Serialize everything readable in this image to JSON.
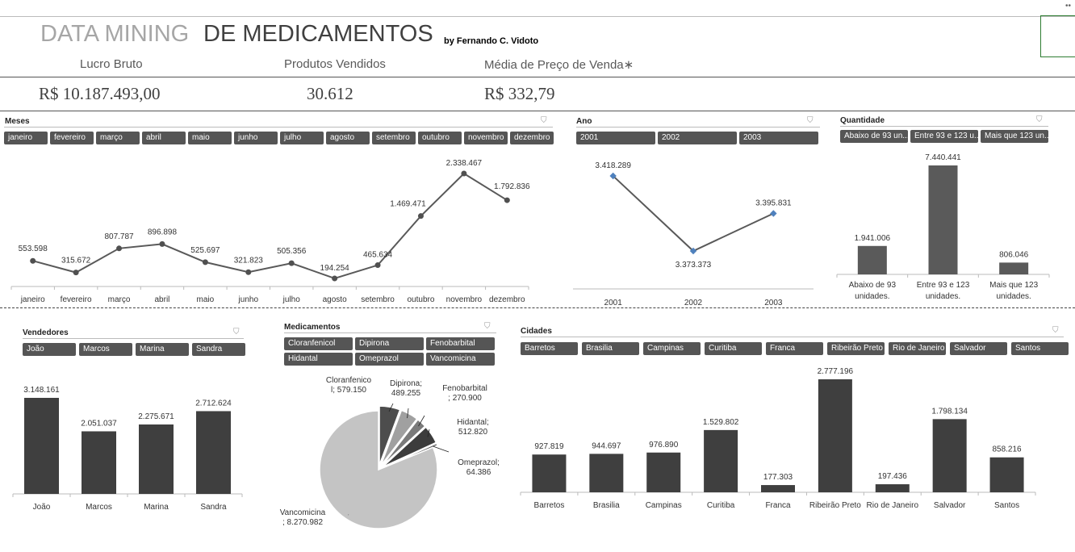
{
  "header": {
    "title_light": "DATA MINING",
    "title_dark": "DE MEDICAMENTOS",
    "byline": "by Fernando C. Vidoto"
  },
  "kpis": [
    {
      "label": "Lucro Bruto",
      "value": "R$ 10.187.493,00"
    },
    {
      "label": "Produtos Vendidos",
      "value": "30.612"
    },
    {
      "label": "Média de Preço de Venda∗",
      "value": "R$ 332,79"
    }
  ],
  "panels": {
    "meses": {
      "title": "Meses",
      "buttons": [
        "janeiro",
        "fevereiro",
        "março",
        "abril",
        "maio",
        "junho",
        "julho",
        "agosto",
        "setembro",
        "outubro",
        "novembro",
        "dezembro"
      ]
    },
    "ano": {
      "title": "Ano",
      "buttons": [
        "2001",
        "2002",
        "2003"
      ]
    },
    "quantidade": {
      "title": "Quantidade",
      "buttons": [
        "Abaixo de 93 un...",
        "Entre 93 e 123 u...",
        "Mais que 123 un..."
      ]
    },
    "vendedores": {
      "title": "Vendedores",
      "buttons": [
        "João",
        "Marcos",
        "Marina",
        "Sandra"
      ]
    },
    "medicamentos": {
      "title": "Medicamentos",
      "buttons": [
        "Cloranfenicol",
        "Dipirona",
        "Fenobarbital",
        "Hidantal",
        "Omeprazol",
        "Vancomicina"
      ]
    },
    "cidades": {
      "title": "Cidades",
      "buttons": [
        "Barretos",
        "Brasilia",
        "Campinas",
        "Curitiba",
        "Franca",
        "Ribeirão Preto",
        "Rio de Janeiro",
        "Salvador",
        "Santos"
      ]
    }
  },
  "chart_data": [
    {
      "id": "meses",
      "type": "line",
      "categories": [
        "janeiro",
        "fevereiro",
        "março",
        "abril",
        "maio",
        "junho",
        "julho",
        "agosto",
        "setembro",
        "outubro",
        "novembro",
        "dezembro"
      ],
      "values": [
        553598,
        315672,
        807787,
        896898,
        525697,
        321823,
        505356,
        194254,
        465634,
        1469471,
        2338467,
        1792836
      ],
      "labels": [
        "553.598",
        "315.672",
        "807.787",
        "896.898",
        "525.697",
        "321.823",
        "505.356",
        "194.254",
        "465.634",
        "1.469.471",
        "2.338.467",
        "1.792.836"
      ]
    },
    {
      "id": "ano",
      "type": "line",
      "categories": [
        "2001",
        "2002",
        "2003"
      ],
      "values": [
        3418289,
        3373373,
        3395831
      ],
      "labels": [
        "3.418.289",
        "3.373.373",
        "3.395.831"
      ]
    },
    {
      "id": "quantidade",
      "type": "bar",
      "categories": [
        "Abaixo de 93 unidades.",
        "Entre 93 e 123 unidades.",
        "Mais que 123 unidades."
      ],
      "values": [
        1941006,
        7440441,
        806046
      ],
      "labels": [
        "1.941.006",
        "7.440.441",
        "806.046"
      ]
    },
    {
      "id": "vendedores",
      "type": "bar",
      "categories": [
        "João",
        "Marcos",
        "Marina",
        "Sandra"
      ],
      "values": [
        3148161,
        2051037,
        2275671,
        2712624
      ],
      "labels": [
        "3.148.161",
        "2.051.037",
        "2.275.671",
        "2.712.624"
      ]
    },
    {
      "id": "medicamentos",
      "type": "pie",
      "categories": [
        "Cloranfenicol",
        "Dipirona",
        "Fenobarbital",
        "Hidantal",
        "Omeprazol",
        "Vancomicina"
      ],
      "values": [
        579150,
        489255,
        270900,
        512820,
        64386,
        8270982
      ],
      "labels": [
        "Cloranfenico l; 579.150",
        "Dipirona; 489.255",
        "Fenobarbital ; 270.900",
        "Hidantal; 512.820",
        "Omeprazol; 64.386",
        "Vancomicina ; 8.270.982"
      ],
      "colors": [
        "#4d4d4d",
        "#a0a0a0",
        "#7a7a7a",
        "#3c3c3c",
        "#5a5a5a",
        "#c4c4c4"
      ]
    },
    {
      "id": "cidades",
      "type": "bar",
      "categories": [
        "Barretos",
        "Brasilia",
        "Campinas",
        "Curitiba",
        "Franca",
        "Ribeirão Preto",
        "Rio de Janeiro",
        "Salvador",
        "Santos"
      ],
      "values": [
        927819,
        944697,
        976890,
        1529802,
        177303,
        2777196,
        197436,
        1798134,
        858216
      ],
      "labels": [
        "927.819",
        "944.697",
        "976.890",
        "1.529.802",
        "177.303",
        "2.777.196",
        "197.436",
        "1.798.134",
        "858.216"
      ]
    }
  ]
}
